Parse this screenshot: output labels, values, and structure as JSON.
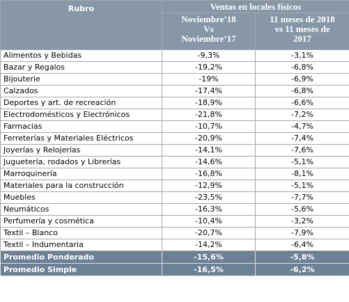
{
  "header": {
    "title": "Rubro",
    "group": "Ventas en locales físicos",
    "columns": [
      "Noviembre’18\nVs\nNoviembre’17",
      "11 meses de 2018\nvs 11 meses de\n2017"
    ]
  },
  "table": {
    "rows": [
      [
        "Alimentos y Bebidas",
        "-9,3%",
        "-3,1%"
      ],
      [
        "Bazar y Regalos",
        "-19,2%",
        "-6,8%"
      ],
      [
        "Bijouterie",
        "-19%",
        "-6,9%"
      ],
      [
        "Calzados",
        "-17,4%",
        "-6,8%"
      ],
      [
        "Deportes y art. de recreación",
        "-18,9%",
        "-6,6%"
      ],
      [
        "Electrodomésticos y Electrónicos",
        "-21,8%",
        "-7,2%"
      ],
      [
        "Farmacias",
        "-10,7%",
        "-4,7%"
      ],
      [
        "Ferreterías y Materiales Eléctricos",
        "-20,9%",
        "-7,4%"
      ],
      [
        "Joyerías y Relojerías",
        "-14,1%",
        "-7,6%"
      ],
      [
        "Juguetería, rodados y Librerías",
        "-14,6%",
        "-5,1%"
      ],
      [
        "Marroquinería",
        "-16,8%",
        "-8,1%"
      ],
      [
        "Materiales para la construcción",
        "-12,9%",
        "-5,1%"
      ],
      [
        "Muebles",
        "-23,5%",
        "-7,7%"
      ],
      [
        "Neumáticos",
        "-16,3%",
        "-5,6%"
      ],
      [
        "Perfumería y cosmética",
        "-10,4%",
        "-3,2%"
      ],
      [
        "Textil – Blanco",
        "-20,7%",
        "-7,9%"
      ],
      [
        "Textil – Indumentaria",
        "-14,2%",
        "-6,4%"
      ]
    ],
    "totals": [
      [
        "Promedio Ponderado",
        "-15,6%",
        "-5,8%"
      ],
      [
        "Promedio Simple",
        "-16,5%",
        "-6,2%"
      ]
    ]
  }
}
